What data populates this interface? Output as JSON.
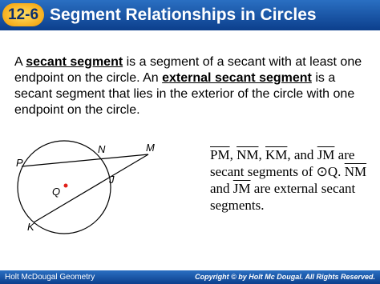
{
  "header": {
    "badge": "12-6",
    "title": "Segment Relationships in Circles"
  },
  "paragraph": [
    "A ",
    "secant segment",
    " is a segment of a secant with at least one endpoint on the circle. An ",
    "external secant segment",
    " is a secant segment that lies in the exterior of the circle with one endpoint on the circle."
  ],
  "diagram": {
    "labels": [
      "P",
      "N",
      "M",
      "Q",
      "J",
      "K"
    ]
  },
  "note": {
    "parts": [
      {
        "t": "PM",
        "over": true
      },
      {
        "t": ", "
      },
      {
        "t": "NM",
        "over": true
      },
      {
        "t": ", "
      },
      {
        "t": "KM",
        "over": true
      },
      {
        "t": ", and "
      },
      {
        "t": "JM",
        "over": true
      },
      {
        "t": " are secant segments of ⊙Q. "
      },
      {
        "t": "NM",
        "over": true
      },
      {
        "t": " and "
      },
      {
        "t": "JM",
        "over": true
      },
      {
        "t": " are external secant segments."
      }
    ]
  },
  "footer": {
    "left": "Holt McDougal Geometry",
    "right": "Copyright © by Holt Mc Dougal. All Rights Reserved."
  }
}
